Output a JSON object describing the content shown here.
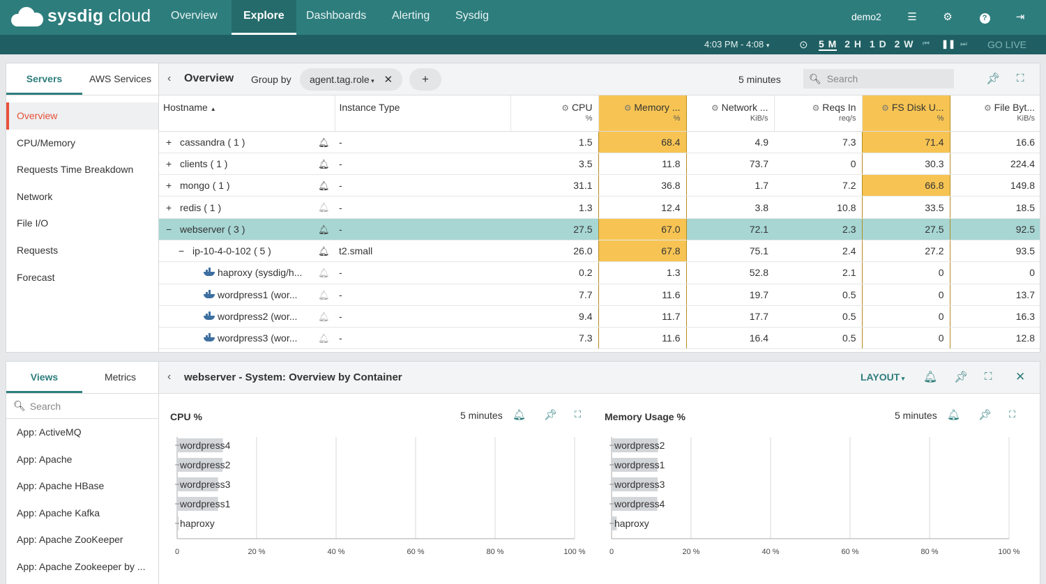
{
  "brand": {
    "strong": "sysdig",
    "light": "cloud"
  },
  "nav": {
    "tabs": [
      "Overview",
      "Explore",
      "Dashboards",
      "Alerting",
      "Sysdig"
    ],
    "active": 1,
    "user": "demo2"
  },
  "timebar": {
    "range": "4:03 PM - 4:08",
    "windows": [
      "5 M",
      "2 H",
      "1 D",
      "2 W"
    ],
    "active_window": "5 M",
    "go_live": "GO LIVE"
  },
  "sidebar": {
    "tabs": [
      "Servers",
      "AWS Services"
    ],
    "items": [
      "Overview",
      "CPU/Memory",
      "Requests Time Breakdown",
      "Network",
      "File I/O",
      "Requests",
      "Forecast"
    ]
  },
  "explore": {
    "title": "Overview",
    "group_by_label": "Group by",
    "group_by_value": "agent.tag.role",
    "plus": "+",
    "time_window": "5 minutes",
    "search_placeholder": "Search",
    "columns": [
      {
        "name": "Hostname",
        "unit": ""
      },
      {
        "name": "Instance Type",
        "unit": ""
      },
      {
        "name": "CPU",
        "unit": "%"
      },
      {
        "name": "Memory ...",
        "unit": "%"
      },
      {
        "name": "Network ...",
        "unit": "KiB/s"
      },
      {
        "name": "Reqs In",
        "unit": "req/s"
      },
      {
        "name": "FS Disk U...",
        "unit": "%"
      },
      {
        "name": "File Byt...",
        "unit": "KiB/s"
      }
    ],
    "rows": [
      {
        "prefix": "+",
        "name": "cassandra ( 1 )",
        "instance": "-",
        "cpu": "1.5",
        "mem": "68.4",
        "net": "4.9",
        "reqs": "7.3",
        "disk": "71.4",
        "file": "16.6",
        "hl": [
          "mem",
          "disk"
        ]
      },
      {
        "prefix": "+",
        "name": "clients ( 1 )",
        "instance": "-",
        "cpu": "3.5",
        "mem": "11.8",
        "net": "73.7",
        "reqs": "0",
        "disk": "30.3",
        "file": "224.4",
        "hl": []
      },
      {
        "prefix": "+",
        "name": "mongo ( 1 )",
        "instance": "-",
        "cpu": "31.1",
        "mem": "36.8",
        "net": "1.7",
        "reqs": "7.2",
        "disk": "66.8",
        "file": "149.8",
        "hl": [
          "disk"
        ]
      },
      {
        "prefix": "+",
        "name": "redis ( 1 )",
        "instance": "-",
        "cpu": "1.3",
        "mem": "12.4",
        "net": "3.8",
        "reqs": "10.8",
        "disk": "33.5",
        "file": "18.5",
        "hl": []
      },
      {
        "prefix": "−",
        "name": "webserver ( 3 )",
        "instance": "-",
        "cpu": "27.5",
        "mem": "67.0",
        "net": "72.1",
        "reqs": "2.3",
        "disk": "27.5",
        "file": "92.5",
        "hl": [
          "mem"
        ]
      },
      {
        "prefix": "−",
        "name": "ip-10-4-0-102 ( 5 )",
        "instance": "t2.small",
        "cpu": "26.0",
        "mem": "67.8",
        "net": "75.1",
        "reqs": "2.4",
        "disk": "27.2",
        "file": "93.5",
        "hl": [
          "mem"
        ]
      },
      {
        "prefix": "",
        "name": "haproxy (sysdig/h...",
        "instance": "-",
        "cpu": "0.2",
        "mem": "1.3",
        "net": "52.8",
        "reqs": "2.1",
        "disk": "0",
        "file": "0",
        "hl": []
      },
      {
        "prefix": "",
        "name": "wordpress1 (wor...",
        "instance": "-",
        "cpu": "7.7",
        "mem": "11.6",
        "net": "19.7",
        "reqs": "0.5",
        "disk": "0",
        "file": "13.7",
        "hl": []
      },
      {
        "prefix": "",
        "name": "wordpress2 (wor...",
        "instance": "-",
        "cpu": "9.4",
        "mem": "11.7",
        "net": "17.7",
        "reqs": "0.5",
        "disk": "0",
        "file": "16.3",
        "hl": []
      },
      {
        "prefix": "",
        "name": "wordpress3 (wor...",
        "instance": "-",
        "cpu": "7.3",
        "mem": "11.6",
        "net": "16.4",
        "reqs": "0.5",
        "disk": "0",
        "file": "12.8",
        "hl": []
      }
    ]
  },
  "views": {
    "tabs": [
      "Views",
      "Metrics"
    ],
    "search_placeholder": "Search",
    "items": [
      "App: ActiveMQ",
      "App: Apache",
      "App: Apache HBase",
      "App: Apache Kafka",
      "App: Apache ZooKeeper",
      "App: Apache Zookeeper by ..."
    ]
  },
  "dashboard": {
    "title": "webserver - System: Overview by Container",
    "layout_label": "LAYOUT",
    "charts_meta": [
      {
        "title": "CPU %",
        "window": "5 minutes"
      },
      {
        "title": "Memory Usage %",
        "window": "5 minutes"
      }
    ]
  },
  "chart_data": [
    {
      "type": "bar",
      "orientation": "horizontal",
      "title": "CPU %",
      "categories": [
        "wordpress4",
        "wordpress2",
        "wordpress3",
        "wordpress1",
        "haproxy"
      ],
      "values": [
        11.5,
        11.4,
        10.3,
        10.3,
        0.4
      ],
      "xlim": [
        0,
        100
      ],
      "ticks": [
        "0",
        "20 %",
        "40 %",
        "60 %",
        "80 %",
        "100 %"
      ],
      "grid": true
    },
    {
      "type": "bar",
      "orientation": "horizontal",
      "title": "Memory Usage %",
      "categories": [
        "wordpress2",
        "wordpress1",
        "wordpress3",
        "wordpress4",
        "haproxy"
      ],
      "values": [
        11.7,
        11.6,
        11.6,
        11.5,
        1.3
      ],
      "xlim": [
        0,
        100
      ],
      "ticks": [
        "0",
        "20 %",
        "40 %",
        "60 %",
        "80 %",
        "100 %"
      ],
      "grid": true
    }
  ]
}
